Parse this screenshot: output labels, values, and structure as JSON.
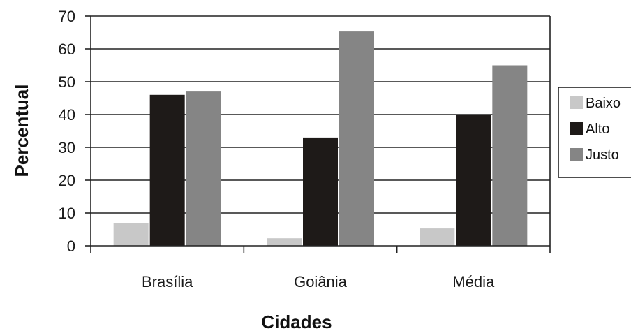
{
  "chart_data": {
    "type": "bar",
    "title": "",
    "xlabel": "Cidades",
    "ylabel": "Percentual",
    "categories": [
      "Brasília",
      "Goiânia",
      "Média"
    ],
    "series": [
      {
        "name": "Baixo",
        "values": [
          7,
          2.3,
          5.3
        ],
        "color": "#c8c8c8"
      },
      {
        "name": "Alto",
        "values": [
          46,
          33,
          40
        ],
        "color": "#1e1a18"
      },
      {
        "name": "Justo",
        "values": [
          47,
          65.3,
          55
        ],
        "color": "#858585"
      }
    ],
    "ylim": [
      0,
      70
    ],
    "yticks": [
      "0",
      "10",
      "20",
      "30",
      "40",
      "50",
      "60",
      "70"
    ],
    "grid": true,
    "legend": "right"
  }
}
